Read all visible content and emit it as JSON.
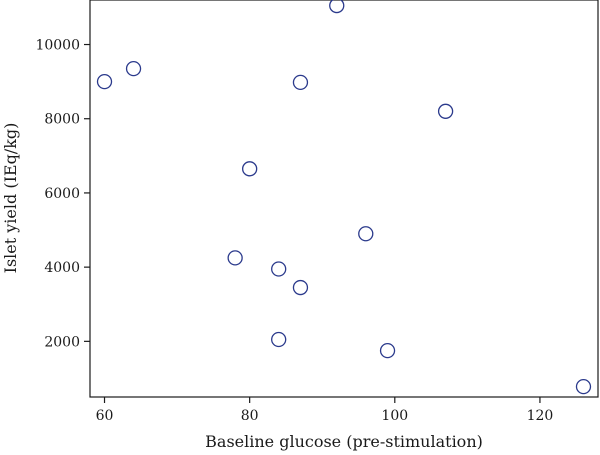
{
  "chart_data": {
    "type": "scatter",
    "title": "",
    "xlabel": "Baseline glucose (pre-stimulation)",
    "ylabel": "Islet yield (IEq/kg)",
    "xlim": [
      58,
      128
    ],
    "ylim": [
      500,
      11200
    ],
    "xticks": [
      60,
      80,
      100,
      120
    ],
    "yticks": [
      2000,
      4000,
      6000,
      8000,
      10000
    ],
    "grid": false,
    "legend": "none",
    "marker_color": "#2b3a8c",
    "points": [
      {
        "x": 60,
        "y": 9000
      },
      {
        "x": 64,
        "y": 9350
      },
      {
        "x": 78,
        "y": 4250
      },
      {
        "x": 80,
        "y": 6650
      },
      {
        "x": 84,
        "y": 3950
      },
      {
        "x": 84,
        "y": 2050
      },
      {
        "x": 87,
        "y": 8980
      },
      {
        "x": 87,
        "y": 3450
      },
      {
        "x": 92,
        "y": 11050
      },
      {
        "x": 96,
        "y": 4900
      },
      {
        "x": 99,
        "y": 1750
      },
      {
        "x": 107,
        "y": 8200
      },
      {
        "x": 126,
        "y": 780
      }
    ]
  }
}
